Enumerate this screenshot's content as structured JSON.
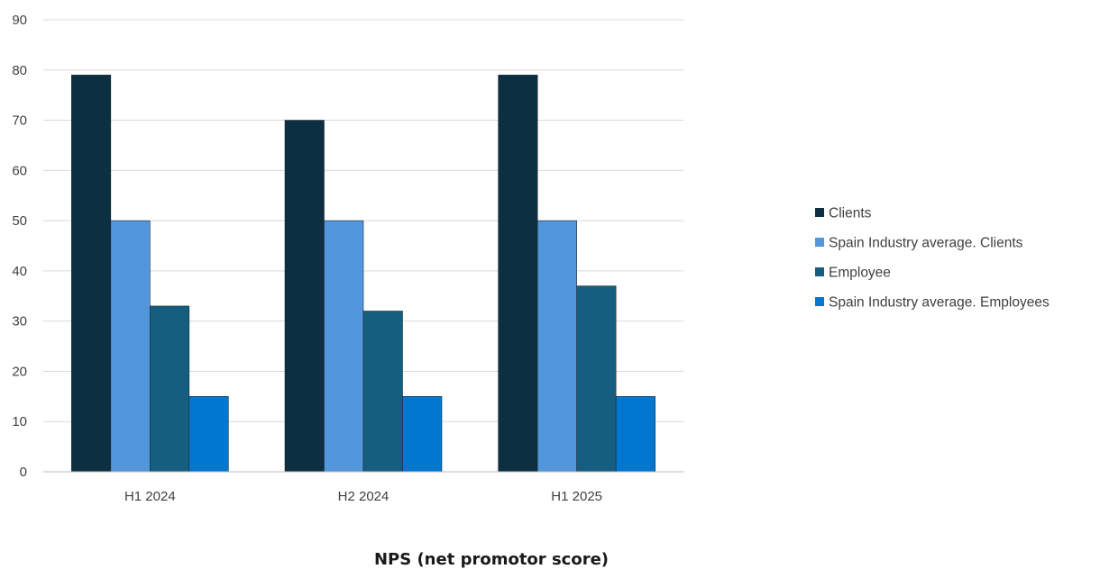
{
  "chart_data": {
    "type": "bar",
    "title": "NPS (net promotor score)",
    "categories": [
      "H1 2024",
      "H2 2024",
      "H1 2025"
    ],
    "series": [
      {
        "name": "Clients",
        "color": "#0d2f42",
        "values": [
          79,
          70,
          79
        ]
      },
      {
        "name": "Spain Industry average. Clients",
        "color": "#5297dc",
        "values": [
          50,
          50,
          50
        ]
      },
      {
        "name": "Employee",
        "color": "#155e80",
        "values": [
          33,
          32,
          37
        ]
      },
      {
        "name": "Spain Industry average. Employees",
        "color": "#0277d0",
        "values": [
          15,
          15,
          15
        ]
      }
    ],
    "ylim": [
      0,
      90
    ],
    "yticks": [
      "0",
      "10",
      "20",
      "30",
      "40",
      "50",
      "60",
      "70",
      "80",
      "90"
    ],
    "grid": true,
    "legend_position": "right"
  }
}
